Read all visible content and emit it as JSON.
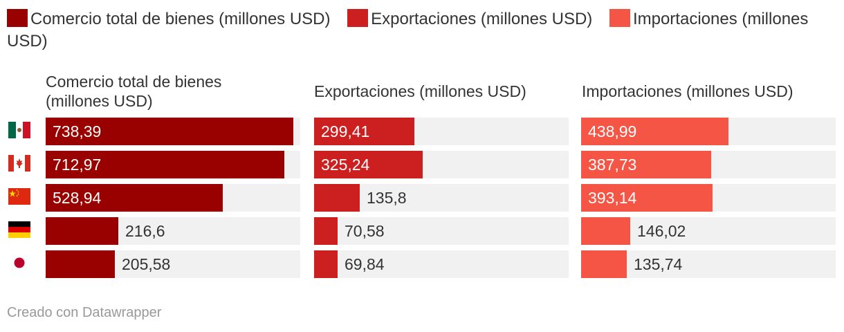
{
  "colors": {
    "total": "#990000",
    "exports": "#cc2020",
    "imports": "#f55545",
    "track": "#f1f1f1",
    "label_inside": "#ffffff",
    "label_outside": "#333333"
  },
  "legend": [
    {
      "label": "Comercio total de bienes (millones USD)",
      "color": "#990000"
    },
    {
      "label": "Exportaciones (millones USD)",
      "color": "#cc2020"
    },
    {
      "label": "Importaciones (millones USD)",
      "color": "#f55545"
    }
  ],
  "credit": "Creado con Datawrapper",
  "chart_data": {
    "type": "bar",
    "orientation": "horizontal",
    "categories": [
      "México",
      "Canadá",
      "China",
      "Alemania",
      "Japón"
    ],
    "category_icons": [
      "mexico-flag-icon",
      "canada-flag-icon",
      "china-flag-icon",
      "germany-flag-icon",
      "japan-flag-icon"
    ],
    "xlim": [
      0,
      760
    ],
    "series": [
      {
        "name": "Comercio total de bienes (millones USD)",
        "header": "Comercio total de bienes (millones USD)",
        "color": "#990000",
        "values": [
          738.39,
          712.97,
          528.94,
          216.6,
          205.58
        ],
        "labels": [
          "738,39",
          "712,97",
          "528,94",
          "216,6",
          "205,58"
        ]
      },
      {
        "name": "Exportaciones (millones USD)",
        "header": "Exportaciones (millones USD)",
        "color": "#cc2020",
        "values": [
          299.41,
          325.24,
          135.8,
          70.58,
          69.84
        ],
        "labels": [
          "299,41",
          "325,24",
          "135,8",
          "70,58",
          "69,84"
        ]
      },
      {
        "name": "Importaciones (millones USD)",
        "header": "Importaciones (millones USD)",
        "color": "#f55545",
        "values": [
          438.99,
          387.73,
          393.14,
          146.02,
          135.74
        ],
        "labels": [
          "438,99",
          "387,73",
          "393,14",
          "146,02",
          "135,74"
        ]
      }
    ]
  }
}
